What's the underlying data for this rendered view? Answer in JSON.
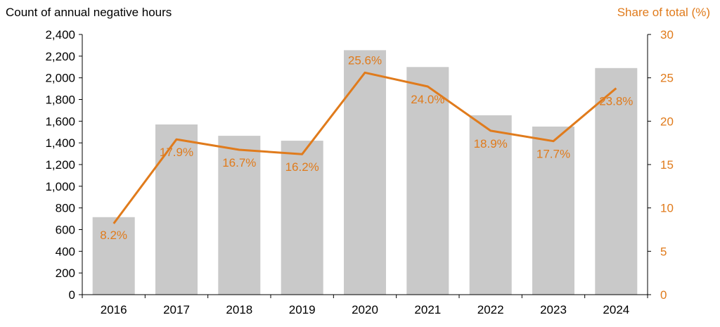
{
  "chart_data": {
    "type": "bar+line",
    "categories": [
      "2016",
      "2017",
      "2018",
      "2019",
      "2020",
      "2021",
      "2022",
      "2023",
      "2024"
    ],
    "series": [
      {
        "type": "bar",
        "axis": "left",
        "values": [
          715,
          1570,
          1465,
          1420,
          2255,
          2100,
          1655,
          1550,
          2090
        ],
        "color": "#C9C9C9"
      },
      {
        "type": "line",
        "axis": "right",
        "values": [
          8.2,
          17.9,
          16.7,
          16.2,
          25.6,
          24.0,
          18.9,
          17.7,
          23.8
        ],
        "data_labels": [
          "8.2%",
          "17.9%",
          "16.7%",
          "16.2%",
          "25.6%",
          "24.0%",
          "18.9%",
          "17.7%",
          "23.8%"
        ],
        "color": "#E07B1C"
      }
    ],
    "y_left": {
      "label": "Count of annual negative hours",
      "ylim": [
        0,
        2400
      ],
      "ticks": [
        "0",
        "200",
        "400",
        "600",
        "800",
        "1,000",
        "1,200",
        "1,400",
        "1,600",
        "1,800",
        "2,000",
        "2,200",
        "2,400"
      ]
    },
    "y_right": {
      "label": "Share of total (%)",
      "ylim": [
        0,
        30
      ],
      "ticks": [
        "0",
        "5",
        "10",
        "15",
        "20",
        "25",
        "30"
      ]
    },
    "grid": false,
    "legend": "none"
  }
}
